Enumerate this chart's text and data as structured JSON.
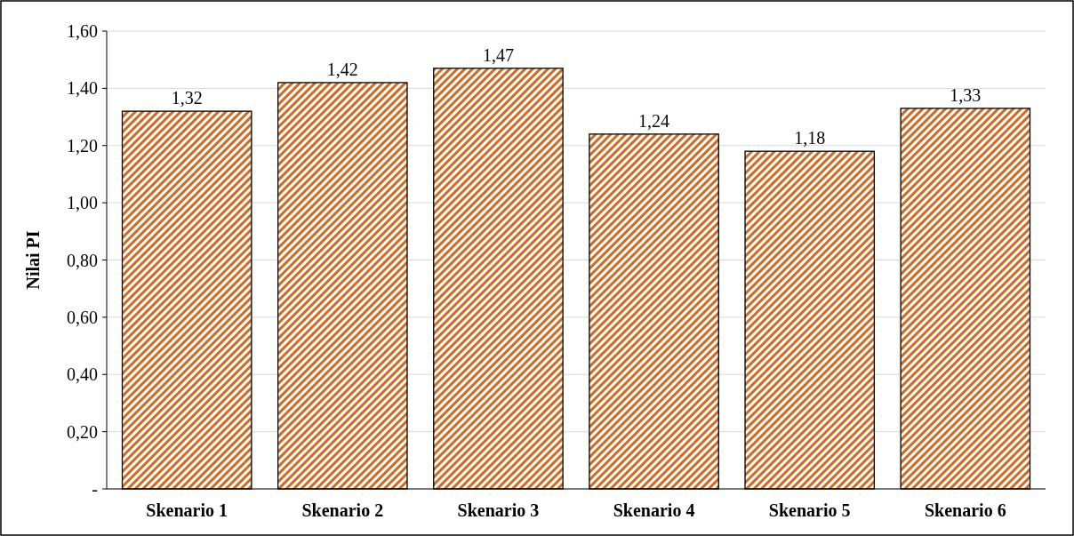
{
  "chart_data": {
    "type": "bar",
    "ylabel": "Nilai PI",
    "categories": [
      "Skenario 1",
      "Skenario 2",
      "Skenario 3",
      "Skenario 4",
      "Skenario 5",
      "Skenario 6"
    ],
    "values": [
      1.32,
      1.42,
      1.47,
      1.24,
      1.18,
      1.33
    ],
    "value_labels": [
      "1,32",
      "1,42",
      "1,47",
      "1,24",
      "1,18",
      "1,33"
    ],
    "color": "#d2691e",
    "ylim": [
      0,
      1.6
    ],
    "yticks": [
      {
        "value": 0,
        "label": "-"
      },
      {
        "value": 0.2,
        "label": "0,20"
      },
      {
        "value": 0.4,
        "label": "0,40"
      },
      {
        "value": 0.6,
        "label": "0,60"
      },
      {
        "value": 0.8,
        "label": "0,80"
      },
      {
        "value": 1.0,
        "label": "1,00"
      },
      {
        "value": 1.2,
        "label": "1,20"
      },
      {
        "value": 1.4,
        "label": "1,40"
      },
      {
        "value": 1.6,
        "label": "1,60"
      }
    ],
    "grid": "y"
  }
}
